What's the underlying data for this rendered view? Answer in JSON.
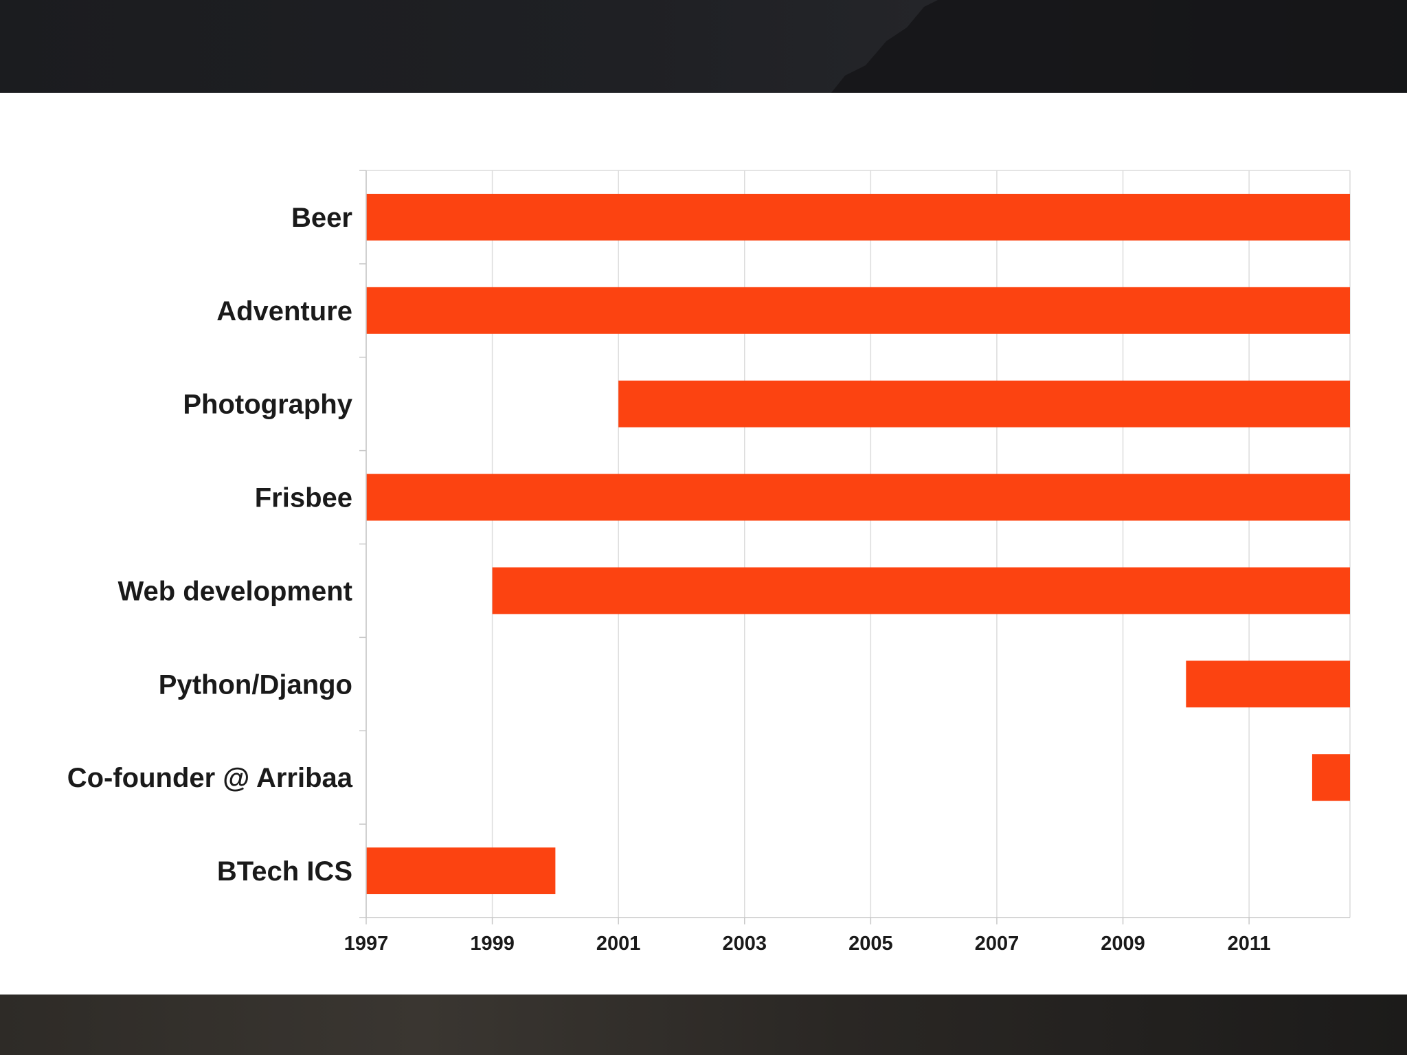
{
  "colors": {
    "bar": "#fc4311",
    "grid": "#dcdcdc",
    "axis": "#c8c8c8",
    "text": "#1a1a1a",
    "slide_background": "#ffffff",
    "frame_background": "#1c1d20"
  },
  "chart_data": {
    "type": "bar",
    "orientation": "horizontal",
    "subtype": "floating-range",
    "title": "",
    "xlabel": "",
    "ylabel": "",
    "xlim": [
      1997,
      2012.6
    ],
    "x_ticks": [
      1997,
      1999,
      2001,
      2003,
      2005,
      2007,
      2009,
      2011
    ],
    "grid": "vertical",
    "legend": "none",
    "categories": [
      "Beer",
      "Adventure",
      "Photography",
      "Frisbee",
      "Web development",
      "Python/Django",
      "Co-founder @ Arribaa",
      "BTech ICS"
    ],
    "start": [
      1997,
      1997,
      2001,
      1997,
      1999,
      2010,
      2012,
      1997
    ],
    "end": [
      2012.6,
      2012.6,
      2012.6,
      2012.6,
      2012.6,
      2012.6,
      2012.6,
      2000
    ]
  }
}
